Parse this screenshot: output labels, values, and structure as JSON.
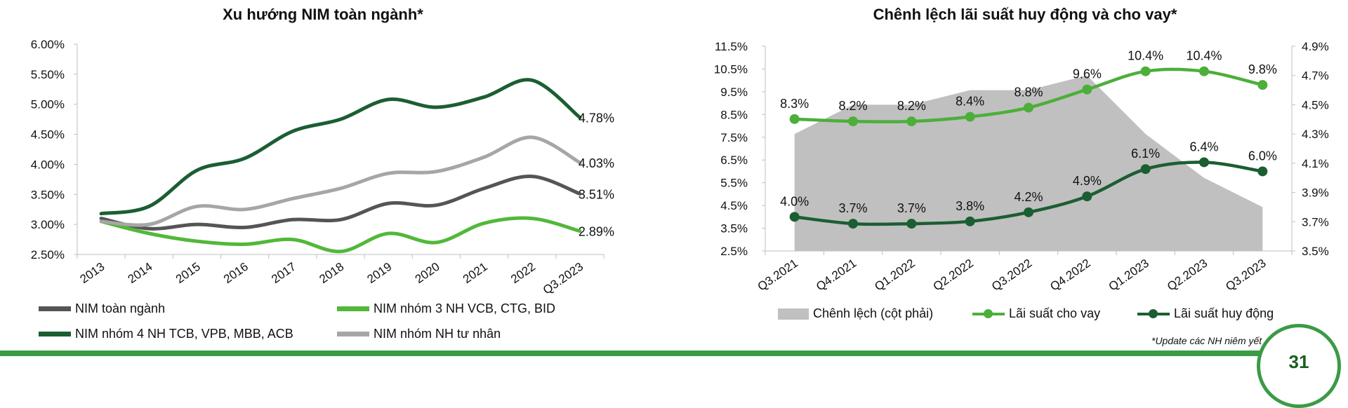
{
  "chart_data": [
    {
      "type": "line",
      "title": "Xu hướng NIM toàn ngành*",
      "categories": [
        "2013",
        "2014",
        "2015",
        "2016",
        "2017",
        "2018",
        "2019",
        "2020",
        "2021",
        "2022",
        "Q3.2023"
      ],
      "y_ticks": [
        "2.50%",
        "3.00%",
        "3.50%",
        "4.00%",
        "4.50%",
        "5.00%",
        "5.50%",
        "6.00%"
      ],
      "ylim": [
        2.5,
        6.0
      ],
      "grid": false,
      "legend_position": "bottom",
      "series": [
        {
          "name": "NIM toàn ngành",
          "color": "#555555",
          "values": [
            3.1,
            2.93,
            3.0,
            2.95,
            3.08,
            3.08,
            3.35,
            3.32,
            3.6,
            3.8,
            3.51
          ],
          "end_label": "3.51%"
        },
        {
          "name": "NIM nhóm 3 NH VCB, CTG, BID",
          "color": "#52b83a",
          "values": [
            3.05,
            2.85,
            2.72,
            2.67,
            2.75,
            2.55,
            2.85,
            2.7,
            3.02,
            3.1,
            2.89
          ],
          "end_label": "2.89%"
        },
        {
          "name": "NIM nhóm 4 NH TCB, VPB, MBB, ACB",
          "color": "#1b5e32",
          "values": [
            3.18,
            3.3,
            3.9,
            4.1,
            4.55,
            4.75,
            5.08,
            4.95,
            5.12,
            5.4,
            4.78
          ],
          "end_label": "4.78%"
        },
        {
          "name": "NIM nhóm NH tư nhân",
          "color": "#a6a6a6",
          "values": [
            3.05,
            3.0,
            3.3,
            3.25,
            3.43,
            3.6,
            3.85,
            3.88,
            4.12,
            4.45,
            4.03
          ],
          "end_label": "4.03%"
        }
      ]
    },
    {
      "type": "line",
      "title": "Chênh lệch lãi suất huy động và cho vay*",
      "categories": [
        "Q3.2021",
        "Q4.2021",
        "Q1.2022",
        "Q2.2022",
        "Q3.2022",
        "Q4.2022",
        "Q1.2023",
        "Q2.2023",
        "Q3.2023"
      ],
      "y_left_ticks": [
        "2.5%",
        "3.5%",
        "4.5%",
        "5.5%",
        "6.5%",
        "7.5%",
        "8.5%",
        "9.5%",
        "10.5%",
        "11.5%"
      ],
      "ylim_left": [
        2.5,
        11.5
      ],
      "y_right_ticks": [
        "3.5%",
        "3.7%",
        "3.9%",
        "4.1%",
        "4.3%",
        "4.5%",
        "4.7%",
        "4.9%"
      ],
      "ylim_right": [
        3.5,
        4.9
      ],
      "grid": false,
      "legend_position": "bottom",
      "area": {
        "name": "Chênh lệch (cột phải)",
        "color": "#c0c0c0",
        "values": [
          4.3,
          4.5,
          4.5,
          4.6,
          4.6,
          4.7,
          4.3,
          4.0,
          3.8
        ]
      },
      "series": [
        {
          "name": "Lãi suất cho vay",
          "color": "#4caf3a",
          "values": [
            8.3,
            8.2,
            8.2,
            8.4,
            8.8,
            9.6,
            10.4,
            10.4,
            9.8
          ],
          "labels": [
            "8.3%",
            "8.2%",
            "8.2%",
            "8.4%",
            "8.8%",
            "9.6%",
            "10.4%",
            "10.4%",
            "9.8%"
          ]
        },
        {
          "name": "Lãi suất huy động",
          "color": "#1b5e32",
          "values": [
            4.0,
            3.7,
            3.7,
            3.8,
            4.2,
            4.9,
            6.1,
            6.4,
            6.0
          ],
          "labels": [
            "4.0%",
            "3.7%",
            "3.7%",
            "3.8%",
            "4.2%",
            "4.9%",
            "6.1%",
            "6.4%",
            "6.0%"
          ]
        }
      ]
    }
  ],
  "footnote": "*Update các NH niêm yết",
  "page_number": "31"
}
